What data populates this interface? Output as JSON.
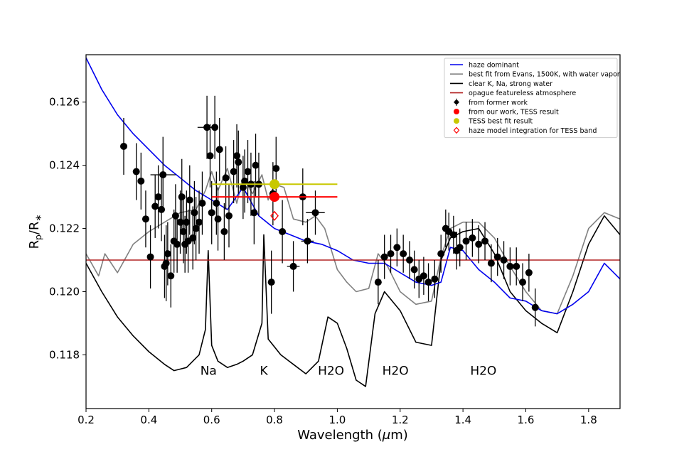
{
  "chart_data": {
    "type": "line",
    "title": "",
    "xlabel": "Wavelength (μm)",
    "ylabel": "Rp/R*",
    "xlim": [
      0.2,
      1.9
    ],
    "ylim": [
      0.1163,
      0.1275
    ],
    "xticks": [
      0.2,
      0.4,
      0.6,
      0.8,
      1.0,
      1.2,
      1.4,
      1.6,
      1.8
    ],
    "xtick_labels": [
      "0.2",
      "0.4",
      "0.6",
      "0.8",
      "1.0",
      "1.2",
      "1.4",
      "1.6",
      "1.8"
    ],
    "yticks": [
      0.118,
      0.12,
      0.122,
      0.124,
      0.126
    ],
    "ytick_labels": [
      "0.118",
      "0.120",
      "0.122",
      "0.124",
      "0.126"
    ],
    "grid": false,
    "legend_position": "top-right",
    "legend": [
      {
        "label": "haze dominant",
        "color": "#0000ee",
        "kind": "line"
      },
      {
        "label": "best fit from Evans, 1500K, with water vapor",
        "color": "#808080",
        "kind": "line"
      },
      {
        "label": "clear K, Na, strong water",
        "color": "#000000",
        "kind": "line"
      },
      {
        "label": "opague featureless atmosphere",
        "color": "#b22222",
        "kind": "line"
      },
      {
        "label": "from former work",
        "color": "#000000",
        "kind": "errorbar"
      },
      {
        "label": "from our work, TESS result",
        "color": "#ff0000",
        "kind": "marker"
      },
      {
        "label": "TESS best fit result",
        "color": "#c8c800",
        "kind": "marker"
      },
      {
        "label": "haze model integration for TESS band",
        "color": "#ff0000",
        "kind": "open-diamond"
      }
    ],
    "annotations": [
      {
        "text": "Na",
        "x": 0.59,
        "y": 0.1175
      },
      {
        "text": "K",
        "x": 0.766,
        "y": 0.1175
      },
      {
        "text": "H2O",
        "x": 0.98,
        "y": 0.1175
      },
      {
        "text": "H2O",
        "x": 1.185,
        "y": 0.1175
      },
      {
        "text": "H2O",
        "x": 1.465,
        "y": 0.1175
      }
    ],
    "series": [
      {
        "name": "haze dominant",
        "color": "#0000ee",
        "x": [
          0.2,
          0.25,
          0.3,
          0.35,
          0.4,
          0.45,
          0.5,
          0.55,
          0.6,
          0.65,
          0.7,
          0.75,
          0.8,
          0.85,
          0.9,
          0.95,
          1.0,
          1.05,
          1.1,
          1.15,
          1.2,
          1.25,
          1.3,
          1.33,
          1.36,
          1.4,
          1.45,
          1.5,
          1.55,
          1.6,
          1.65,
          1.7,
          1.75,
          1.8,
          1.85,
          1.88,
          1.9
        ],
        "y": [
          0.1274,
          0.1264,
          0.1256,
          0.125,
          0.1245,
          0.124,
          0.1236,
          0.1232,
          0.1229,
          0.1226,
          0.1233,
          0.1224,
          0.122,
          0.1218,
          0.1216,
          0.1215,
          0.1213,
          0.121,
          0.1209,
          0.1209,
          0.1206,
          0.1203,
          0.1202,
          0.1203,
          0.1214,
          0.1213,
          0.1207,
          0.1203,
          0.1198,
          0.1197,
          0.1194,
          0.1193,
          0.1196,
          0.12,
          0.1209,
          0.1206,
          0.1204
        ]
      },
      {
        "name": "best fit from Evans, 1500K, with water vapor",
        "color": "#808080",
        "x": [
          0.2,
          0.24,
          0.26,
          0.3,
          0.35,
          0.4,
          0.45,
          0.5,
          0.55,
          0.58,
          0.6,
          0.62,
          0.65,
          0.68,
          0.7,
          0.73,
          0.76,
          0.78,
          0.8,
          0.83,
          0.86,
          0.9,
          0.93,
          0.96,
          1.0,
          1.03,
          1.06,
          1.1,
          1.13,
          1.16,
          1.2,
          1.25,
          1.3,
          1.33,
          1.36,
          1.4,
          1.45,
          1.5,
          1.55,
          1.6,
          1.65,
          1.7,
          1.75,
          1.8,
          1.85,
          1.9
        ],
        "y": [
          0.1212,
          0.1205,
          0.1212,
          0.1206,
          0.1215,
          0.1219,
          0.1222,
          0.1225,
          0.1226,
          0.1232,
          0.1238,
          0.1232,
          0.1239,
          0.1228,
          0.1236,
          0.1231,
          0.1237,
          0.1229,
          0.1234,
          0.1233,
          0.1223,
          0.1222,
          0.1224,
          0.122,
          0.1207,
          0.1203,
          0.12,
          0.1201,
          0.1212,
          0.1208,
          0.12,
          0.1196,
          0.1197,
          0.1211,
          0.122,
          0.1222,
          0.1222,
          0.1217,
          0.1208,
          0.12,
          0.1194,
          0.1193,
          0.1205,
          0.122,
          0.1225,
          0.1223
        ]
      },
      {
        "name": "clear K, Na, strong water",
        "color": "#000000",
        "x": [
          0.2,
          0.25,
          0.3,
          0.35,
          0.4,
          0.45,
          0.48,
          0.52,
          0.56,
          0.58,
          0.589,
          0.6,
          0.62,
          0.65,
          0.68,
          0.7,
          0.73,
          0.76,
          0.766,
          0.78,
          0.82,
          0.86,
          0.9,
          0.94,
          0.97,
          1.0,
          1.03,
          1.06,
          1.09,
          1.12,
          1.15,
          1.2,
          1.25,
          1.3,
          1.33,
          1.36,
          1.4,
          1.45,
          1.5,
          1.55,
          1.6,
          1.65,
          1.7,
          1.75,
          1.8,
          1.85,
          1.9
        ],
        "y": [
          0.1209,
          0.12,
          0.1192,
          0.1186,
          0.1181,
          0.1177,
          0.1175,
          0.1176,
          0.118,
          0.1188,
          0.1213,
          0.1183,
          0.1178,
          0.1176,
          0.1177,
          0.1178,
          0.118,
          0.119,
          0.1218,
          0.1185,
          0.118,
          0.1177,
          0.1174,
          0.1178,
          0.1192,
          0.119,
          0.1182,
          0.1172,
          0.117,
          0.1193,
          0.12,
          0.1194,
          0.1184,
          0.1183,
          0.121,
          0.1217,
          0.1219,
          0.122,
          0.1212,
          0.12,
          0.1194,
          0.119,
          0.1187,
          0.12,
          0.1215,
          0.1224,
          0.1218
        ]
      },
      {
        "name": "opague featureless atmosphere",
        "color": "#b22222",
        "x": [
          0.2,
          1.9
        ],
        "y": [
          0.121,
          0.121
        ]
      }
    ],
    "points_former_work": {
      "x": [
        0.32,
        0.36,
        0.375,
        0.39,
        0.405,
        0.42,
        0.43,
        0.44,
        0.445,
        0.45,
        0.455,
        0.46,
        0.47,
        0.48,
        0.485,
        0.49,
        0.5,
        0.505,
        0.51,
        0.515,
        0.52,
        0.525,
        0.53,
        0.54,
        0.545,
        0.55,
        0.56,
        0.57,
        0.585,
        0.595,
        0.6,
        0.61,
        0.615,
        0.62,
        0.625,
        0.64,
        0.645,
        0.655,
        0.67,
        0.68,
        0.685,
        0.7,
        0.705,
        0.715,
        0.725,
        0.735,
        0.74,
        0.75,
        0.79,
        0.795,
        0.805,
        0.825,
        0.86,
        0.89,
        0.905,
        0.93,
        1.13,
        1.15,
        1.17,
        1.19,
        1.21,
        1.23,
        1.245,
        1.26,
        1.275,
        1.29,
        1.31,
        1.33,
        1.345,
        1.355,
        1.37,
        1.38,
        1.39,
        1.41,
        1.43,
        1.45,
        1.47,
        1.49,
        1.51,
        1.53,
        1.55,
        1.57,
        1.59,
        1.61,
        1.63
      ],
      "y": [
        0.1246,
        0.1238,
        0.1235,
        0.1223,
        0.1211,
        0.1227,
        0.123,
        0.1226,
        0.1237,
        0.1208,
        0.1209,
        0.1212,
        0.1205,
        0.1216,
        0.1224,
        0.1215,
        0.1222,
        0.123,
        0.1219,
        0.1215,
        0.1222,
        0.1216,
        0.1229,
        0.1217,
        0.1225,
        0.122,
        0.1222,
        0.1228,
        0.1252,
        0.1243,
        0.1225,
        0.1252,
        0.1228,
        0.1223,
        0.1245,
        0.1219,
        0.1236,
        0.1224,
        0.1238,
        0.1243,
        0.1241,
        0.1233,
        0.1235,
        0.1238,
        0.1234,
        0.1225,
        0.124,
        0.1234,
        0.1203,
        0.1231,
        0.1239,
        0.1219,
        0.1208,
        0.123,
        0.1216,
        0.1225,
        0.1203,
        0.1211,
        0.1212,
        0.1214,
        0.1212,
        0.121,
        0.1207,
        0.1204,
        0.1205,
        0.1203,
        0.1204,
        0.1212,
        0.122,
        0.1219,
        0.1218,
        0.1213,
        0.1214,
        0.1216,
        0.1217,
        0.1215,
        0.1216,
        0.1209,
        0.1211,
        0.121,
        0.1208,
        0.1208,
        0.1203,
        0.1206,
        0.1195
      ],
      "yerr": [
        0.0009,
        0.0009,
        0.0009,
        0.0009,
        0.001,
        0.001,
        0.001,
        0.001,
        0.0012,
        0.001,
        0.0012,
        0.001,
        0.001,
        0.001,
        0.001,
        0.0009,
        0.001,
        0.0012,
        0.001,
        0.0009,
        0.001,
        0.001,
        0.0011,
        0.001,
        0.001,
        0.001,
        0.001,
        0.001,
        0.001,
        0.001,
        0.001,
        0.001,
        0.001,
        0.001,
        0.001,
        0.0009,
        0.001,
        0.001,
        0.001,
        0.001,
        0.001,
        0.001,
        0.001,
        0.001,
        0.001,
        0.001,
        0.001,
        0.001,
        0.001,
        0.001,
        0.001,
        0.001,
        0.0008,
        0.0009,
        0.0007,
        0.0007,
        0.0007,
        0.0007,
        0.0006,
        0.0006,
        0.0006,
        0.0006,
        0.0006,
        0.0006,
        0.0006,
        0.0006,
        0.0006,
        0.0006,
        0.0006,
        0.0006,
        0.0006,
        0.0006,
        0.0006,
        0.0006,
        0.0006,
        0.0006,
        0.0006,
        0.0006,
        0.0006,
        0.0006,
        0.0006,
        0.0006,
        0.0006,
        0.0006,
        0.0006
      ],
      "xerr": [
        0.0,
        0.0,
        0.0,
        0.0,
        0.0,
        0.0,
        0.0,
        0.0,
        0.04,
        0.0,
        0.0,
        0.0,
        0.0,
        0.0,
        0.0,
        0.0,
        0.0,
        0.0,
        0.0,
        0.0,
        0.0,
        0.0,
        0.0,
        0.0,
        0.0,
        0.0,
        0.0,
        0.0,
        0.03,
        0.0,
        0.0,
        0.0,
        0.0,
        0.0,
        0.0,
        0.0,
        0.0,
        0.0,
        0.0,
        0.0,
        0.0,
        0.0,
        0.0,
        0.0,
        0.0,
        0.0,
        0.0,
        0.0,
        0.0,
        0.0,
        0.0,
        0.0,
        0.02,
        0.0,
        0.02,
        0.03,
        0.0,
        0.0,
        0.0,
        0.0,
        0.0,
        0.0,
        0.0,
        0.0,
        0.0,
        0.0,
        0.0,
        0.0,
        0.0,
        0.0,
        0.0,
        0.0,
        0.0,
        0.0,
        0.0,
        0.0,
        0.0,
        0.0,
        0.0,
        0.0,
        0.0,
        0.0,
        0.0,
        0.0,
        0.0
      ]
    },
    "tess_result": {
      "x": 0.8,
      "y": 0.123,
      "xmin": 0.6,
      "xmax": 1.0,
      "color": "#ff0000"
    },
    "tess_best_fit": {
      "x": 0.8,
      "y": 0.1234,
      "xmin": 0.6,
      "xmax": 1.0,
      "color": "#c8c800"
    },
    "haze_tess_band": {
      "x": 0.8,
      "y": 0.1224,
      "color": "#ff0000"
    }
  }
}
